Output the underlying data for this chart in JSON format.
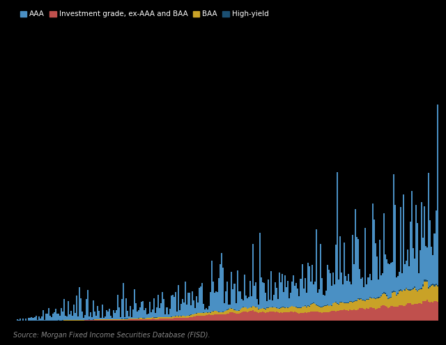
{
  "background_color": "#000000",
  "legend_labels": [
    "AAA",
    "Investment grade, ex-AAA and BAA",
    "BAA",
    "High-yield"
  ],
  "colors": {
    "aaa": "#4a90c4",
    "ig": "#c0504d",
    "baa": "#c9a227",
    "hy": "#1b4f72"
  },
  "source_text": "Source: Morgan Fixed Income Securities Database (FISD).",
  "source_color": "#888888",
  "legend_fontsize": 7.5,
  "source_fontsize": 7,
  "n_bars": 300,
  "seed": 77
}
